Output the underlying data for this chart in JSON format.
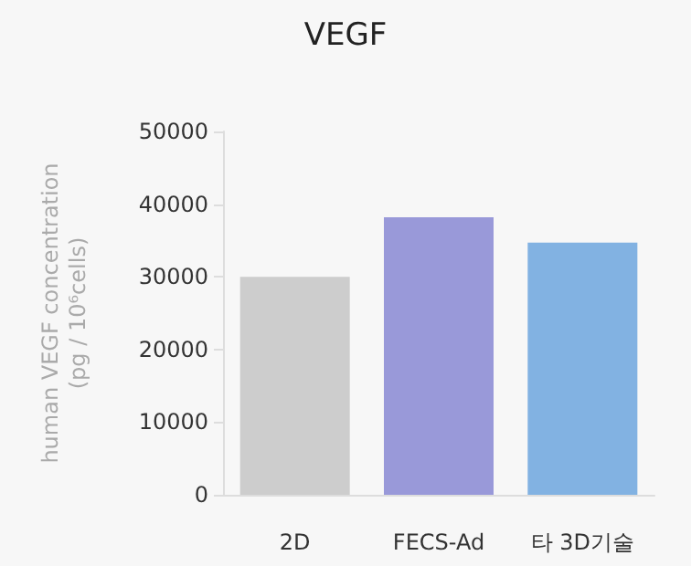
{
  "chart_data": {
    "type": "bar",
    "title": "VEGF",
    "ylabel": "human VEGF concentration\n(pg / 10⁶cells)",
    "categories": [
      "2D",
      "FECS-Ad",
      "타 3D기술"
    ],
    "values": [
      30000,
      38200,
      34700
    ],
    "colors": [
      "#cdcdcd",
      "#9999d9",
      "#82b2e2"
    ],
    "ylim": [
      0,
      50000
    ],
    "yticks": [
      0,
      10000,
      20000,
      30000,
      40000,
      50000
    ],
    "grid": false
  }
}
